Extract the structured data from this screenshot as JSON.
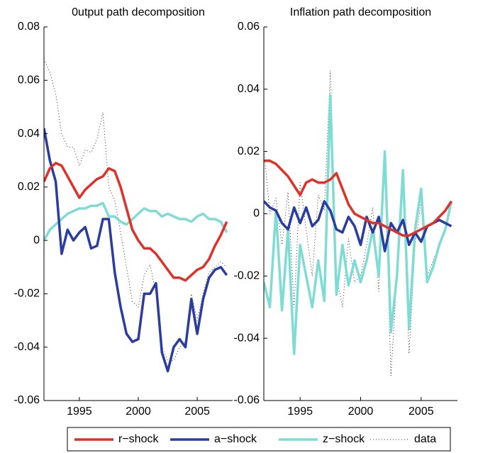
{
  "chart_data": [
    {
      "type": "line",
      "title": "0utput path decomposition",
      "x": [
        1992,
        1992.5,
        1993,
        1993.5,
        1994,
        1994.5,
        1995,
        1995.5,
        1996,
        1996.5,
        1997,
        1997.5,
        1998,
        1998.5,
        1999,
        1999.5,
        2000,
        2000.5,
        2001,
        2001.5,
        2002,
        2002.5,
        2003,
        2003.5,
        2004,
        2004.5,
        2005,
        2005.5,
        2006,
        2006.5,
        2007,
        2007.5
      ],
      "xlim": [
        1992,
        2008
      ],
      "xticks": [
        1995,
        2000,
        2005
      ],
      "ylim": [
        -0.06,
        0.08
      ],
      "yticks": [
        -0.06,
        -0.04,
        -0.02,
        0,
        0.02,
        0.04,
        0.06,
        0.08
      ],
      "legend": "bottom",
      "series": [
        {
          "name": "r−shock",
          "color": "#e0302a",
          "style": "solid",
          "values": [
            0.022,
            0.027,
            0.029,
            0.028,
            0.024,
            0.02,
            0.016,
            0.019,
            0.021,
            0.023,
            0.024,
            0.027,
            0.026,
            0.02,
            0.012,
            0.004,
            0.0,
            -0.003,
            -0.003,
            -0.005,
            -0.008,
            -0.011,
            -0.014,
            -0.014,
            -0.015,
            -0.013,
            -0.011,
            -0.01,
            -0.007,
            -0.002,
            0.002,
            0.007
          ]
        },
        {
          "name": "a−shock",
          "color": "#2a3ca0",
          "style": "solid",
          "values": [
            0.042,
            0.03,
            0.022,
            -0.005,
            0.004,
            0.0,
            0.003,
            0.005,
            -0.003,
            -0.002,
            0.008,
            0.008,
            -0.012,
            -0.025,
            -0.035,
            -0.038,
            -0.037,
            -0.02,
            -0.02,
            -0.016,
            -0.042,
            -0.049,
            -0.04,
            -0.037,
            -0.04,
            -0.022,
            -0.035,
            -0.022,
            -0.014,
            -0.011,
            -0.01,
            -0.013
          ]
        },
        {
          "name": "z−shock",
          "color": "#7fdcd5",
          "style": "solid",
          "values": [
            0.0,
            0.004,
            0.006,
            0.008,
            0.01,
            0.011,
            0.012,
            0.012,
            0.013,
            0.013,
            0.014,
            0.009,
            0.009,
            0.007,
            0.006,
            0.008,
            0.01,
            0.012,
            0.011,
            0.011,
            0.009,
            0.01,
            0.009,
            0.008,
            0.008,
            0.007,
            0.009,
            0.01,
            0.008,
            0.008,
            0.007,
            0.003
          ]
        },
        {
          "name": "data",
          "color": "#000000",
          "style": "dotted",
          "values": [
            0.068,
            0.063,
            0.055,
            0.04,
            0.035,
            0.035,
            0.028,
            0.034,
            0.033,
            0.038,
            0.048,
            0.02,
            0.015,
            0.003,
            -0.01,
            -0.023,
            -0.025,
            -0.013,
            -0.009,
            -0.02,
            -0.04,
            -0.045,
            -0.045,
            -0.04,
            -0.038,
            -0.02,
            -0.03,
            -0.02,
            -0.012,
            -0.01,
            -0.008,
            -0.01
          ]
        }
      ]
    },
    {
      "type": "line",
      "title": "Inflation path decomposition",
      "x": [
        1992,
        1992.5,
        1993,
        1993.5,
        1994,
        1994.5,
        1995,
        1995.5,
        1996,
        1996.5,
        1997,
        1997.5,
        1998,
        1998.5,
        1999,
        1999.5,
        2000,
        2000.5,
        2001,
        2001.5,
        2002,
        2002.5,
        2003,
        2003.5,
        2004,
        2004.5,
        2005,
        2005.5,
        2006,
        2006.5,
        2007,
        2007.5
      ],
      "xlim": [
        1992,
        2008
      ],
      "xticks": [
        1995,
        2000,
        2005
      ],
      "ylim": [
        -0.06,
        0.06
      ],
      "yticks": [
        -0.06,
        -0.04,
        -0.02,
        0,
        0.02,
        0.04,
        0.06
      ],
      "series": [
        {
          "name": "r−shock",
          "color": "#e0302a",
          "style": "solid",
          "values": [
            0.017,
            0.017,
            0.016,
            0.014,
            0.012,
            0.009,
            0.006,
            0.01,
            0.011,
            0.01,
            0.01,
            0.011,
            0.013,
            0.008,
            0.003,
            0.0,
            -0.001,
            -0.002,
            -0.003,
            -0.003,
            -0.004,
            -0.005,
            -0.006,
            -0.007,
            -0.007,
            -0.006,
            -0.005,
            -0.004,
            -0.003,
            -0.001,
            0.001,
            0.004
          ]
        },
        {
          "name": "a−shock",
          "color": "#2a3ca0",
          "style": "solid",
          "values": [
            0.004,
            0.002,
            0.001,
            -0.003,
            -0.005,
            0.002,
            -0.003,
            0.002,
            -0.004,
            -0.002,
            0.004,
            0.001,
            -0.005,
            -0.006,
            -0.001,
            -0.004,
            -0.01,
            -0.001,
            -0.006,
            -0.001,
            -0.012,
            -0.003,
            -0.006,
            -0.002,
            -0.01,
            -0.006,
            -0.009,
            -0.004,
            -0.003,
            -0.002,
            -0.003,
            -0.004
          ]
        },
        {
          "name": "z−shock",
          "color": "#7fdcd5",
          "style": "solid",
          "values": [
            -0.022,
            -0.03,
            0.001,
            -0.031,
            -0.005,
            -0.045,
            -0.01,
            -0.02,
            -0.03,
            -0.015,
            -0.028,
            0.038,
            -0.026,
            -0.01,
            -0.023,
            -0.015,
            -0.022,
            -0.015,
            -0.005,
            -0.02,
            0.02,
            -0.038,
            -0.02,
            0.014,
            -0.037,
            -0.005,
            0.008,
            -0.022,
            -0.017,
            -0.01,
            -0.005,
            0.004
          ]
        },
        {
          "name": "data",
          "color": "#000000",
          "style": "dotted",
          "values": [
            0.021,
            0.0,
            0.005,
            -0.01,
            0.007,
            -0.03,
            0.01,
            -0.005,
            -0.02,
            0.006,
            0.001,
            0.046,
            -0.02,
            -0.03,
            -0.008,
            -0.022,
            -0.02,
            -0.01,
            0.002,
            -0.025,
            0.018,
            -0.052,
            -0.02,
            0.008,
            -0.045,
            -0.01,
            0.004,
            -0.02,
            -0.015,
            -0.01,
            -0.005,
            0.003
          ]
        }
      ]
    }
  ]
}
